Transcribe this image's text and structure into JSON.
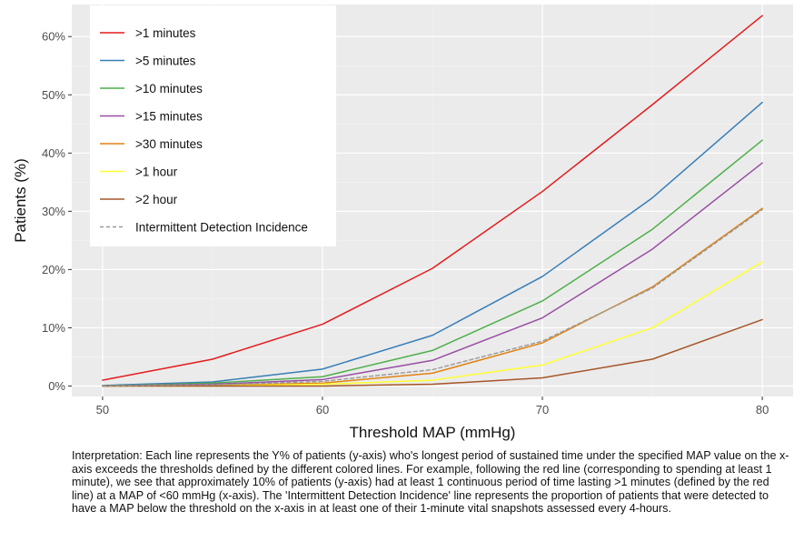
{
  "chart_data": {
    "type": "line",
    "xlabel": "Threshold MAP (mmHg)",
    "ylabel": "Patients (%)",
    "xlim": [
      48.6,
      81.4
    ],
    "ylim": [
      -1.8,
      65.5
    ],
    "x_ticks": [
      50,
      60,
      70,
      80
    ],
    "x_tick_labels": [
      "50",
      "60",
      "70",
      "80"
    ],
    "y_ticks": [
      0,
      10,
      20,
      30,
      40,
      50,
      60
    ],
    "y_tick_labels": [
      "0%",
      "10%",
      "20%",
      "30%",
      "40%",
      "50%",
      "60%"
    ],
    "grid": true,
    "legend_position": "top-left",
    "x": [
      50,
      55,
      60,
      65,
      70,
      75,
      80
    ],
    "series": [
      {
        "name": ">1 minutes",
        "color": "#e41a1c",
        "dash": false,
        "values": [
          1.0,
          4.6,
          10.6,
          20.2,
          33.4,
          48.3,
          63.6
        ]
      },
      {
        "name": ">5 minutes",
        "color": "#377eb8",
        "dash": false,
        "values": [
          0.1,
          0.7,
          2.9,
          8.7,
          18.8,
          32.3,
          48.7
        ]
      },
      {
        "name": ">10 minutes",
        "color": "#4daf4a",
        "dash": false,
        "values": [
          0.0,
          0.5,
          1.6,
          6.1,
          14.6,
          26.9,
          42.2
        ]
      },
      {
        "name": ">15 minutes",
        "color": "#984ea3",
        "dash": false,
        "values": [
          0.0,
          0.3,
          1.1,
          4.4,
          11.7,
          23.5,
          38.3
        ]
      },
      {
        "name": ">30 minutes",
        "color": "#e08214",
        "dash": false,
        "values": [
          0.0,
          0.1,
          0.5,
          2.2,
          7.4,
          17.0,
          30.5
        ]
      },
      {
        "name": ">1 hour",
        "color": "#ffff33",
        "dash": false,
        "values": [
          0.0,
          0.0,
          0.3,
          1.0,
          3.6,
          10.0,
          21.3
        ]
      },
      {
        "name": ">2 hour",
        "color": "#a65628",
        "dash": false,
        "values": [
          0.0,
          0.0,
          0.0,
          0.3,
          1.4,
          4.6,
          11.4
        ]
      },
      {
        "name": "Intermittent Detection Incidence",
        "color": "#999999",
        "dash": true,
        "values": [
          0.0,
          0.2,
          0.8,
          2.8,
          7.7,
          16.8,
          30.3
        ]
      }
    ]
  },
  "caption": "Interpretation: Each line represents the Y% of patients (y-axis) who's longest period of sustained time under the specified MAP value on the x-axis exceeds the thresholds defined by the different colored lines. For example, following the red line (corresponding to spending at least 1 minute), we see that approximately 10% of patients (y-axis) had at least 1 continuous period of time lasting >1 minutes (defined by the red line) at a MAP of <60 mmHg (x-axis). The 'Intermittent Detection Incidence' line represents the proportion of patients that were detected to have a MAP below the threshold on the x-axis in at least one of their 1-minute vital snapshots assessed every 4-hours."
}
